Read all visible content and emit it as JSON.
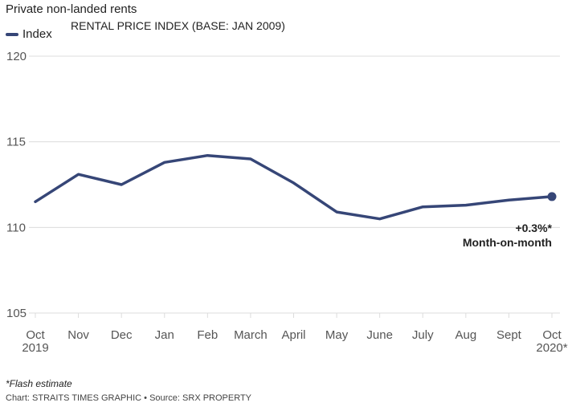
{
  "title": "Private non-landed rents",
  "legend_label": "Index",
  "footnote": "*Flash estimate",
  "source": "Chart: STRAITS TIMES GRAPHIC • Source: SRX PROPERTY",
  "colors": {
    "line": "#364677",
    "grid": "#dcdcdc",
    "tick": "#555555"
  },
  "chart_data": {
    "type": "line",
    "title": "RENTAL PRICE INDEX (BASE: JAN 2009)",
    "xlabel": "",
    "ylabel": "",
    "ylim": [
      105,
      120
    ],
    "yticks": [
      105,
      110,
      115,
      120
    ],
    "categories": [
      "Oct|2019",
      "Nov",
      "Dec",
      "Jan",
      "Feb",
      "March",
      "April",
      "May",
      "June",
      "July",
      "Aug",
      "Sept",
      "Oct|2020*"
    ],
    "series": [
      {
        "name": "Index",
        "values": [
          111.5,
          113.1,
          112.5,
          113.8,
          114.2,
          114.0,
          112.6,
          110.9,
          110.5,
          111.2,
          111.3,
          111.6,
          111.8
        ]
      }
    ],
    "annotation": {
      "value": "+0.3%*",
      "label": "Month-on-month"
    },
    "grid": true
  }
}
